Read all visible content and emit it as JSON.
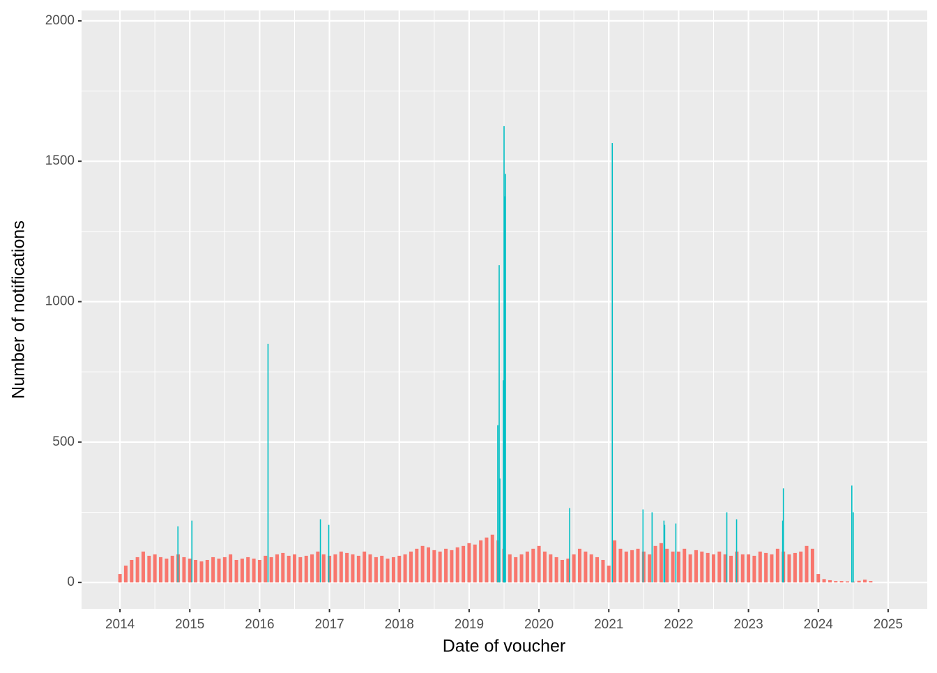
{
  "chart_data": {
    "type": "bar",
    "xlabel": "Date of voucher",
    "ylabel": "Number of notifications",
    "xlim": [
      2013.45,
      2025.56
    ],
    "xticks": [
      2014,
      2015,
      2016,
      2017,
      2018,
      2019,
      2020,
      2021,
      2022,
      2023,
      2024,
      2025
    ],
    "ylim": [
      -94,
      2037
    ],
    "yticks": [
      0,
      500,
      1000,
      1500,
      2000
    ],
    "grid": true,
    "series": [
      {
        "color": "#f8766d",
        "x": [
          2014,
          2014.083,
          2014.167,
          2014.25,
          2014.333,
          2014.417,
          2014.5,
          2014.583,
          2014.667,
          2014.75,
          2014.833,
          2014.917,
          2015,
          2015.083,
          2015.167,
          2015.25,
          2015.333,
          2015.417,
          2015.5,
          2015.583,
          2015.667,
          2015.75,
          2015.833,
          2015.917,
          2016,
          2016.083,
          2016.167,
          2016.25,
          2016.333,
          2016.417,
          2016.5,
          2016.583,
          2016.667,
          2016.75,
          2016.833,
          2016.917,
          2017,
          2017.083,
          2017.167,
          2017.25,
          2017.333,
          2017.417,
          2017.5,
          2017.583,
          2017.667,
          2017.75,
          2017.833,
          2017.917,
          2018,
          2018.083,
          2018.167,
          2018.25,
          2018.333,
          2018.417,
          2018.5,
          2018.583,
          2018.667,
          2018.75,
          2018.833,
          2018.917,
          2019,
          2019.083,
          2019.167,
          2019.25,
          2019.333,
          2019.417,
          2019.5,
          2019.583,
          2019.667,
          2019.75,
          2019.833,
          2019.917,
          2020,
          2020.083,
          2020.167,
          2020.25,
          2020.333,
          2020.417,
          2020.5,
          2020.583,
          2020.667,
          2020.75,
          2020.833,
          2020.917,
          2021,
          2021.083,
          2021.167,
          2021.25,
          2021.333,
          2021.417,
          2021.5,
          2021.583,
          2021.667,
          2021.75,
          2021.833,
          2021.917,
          2022,
          2022.083,
          2022.167,
          2022.25,
          2022.333,
          2022.417,
          2022.5,
          2022.583,
          2022.667,
          2022.75,
          2022.833,
          2022.917,
          2023,
          2023.083,
          2023.167,
          2023.25,
          2023.333,
          2023.417,
          2023.5,
          2023.583,
          2023.667,
          2023.75,
          2023.833,
          2023.917,
          2024,
          2024.083,
          2024.167,
          2024.25,
          2024.333,
          2024.417,
          2024.5,
          2024.583,
          2024.667,
          2024.75
        ],
        "values": [
          30,
          60,
          80,
          90,
          110,
          95,
          100,
          90,
          85,
          95,
          100,
          90,
          85,
          80,
          75,
          80,
          90,
          85,
          90,
          100,
          80,
          85,
          90,
          85,
          80,
          95,
          90,
          100,
          105,
          95,
          100,
          90,
          95,
          100,
          110,
          100,
          95,
          100,
          110,
          105,
          100,
          95,
          110,
          100,
          90,
          95,
          85,
          90,
          95,
          100,
          110,
          120,
          130,
          125,
          115,
          110,
          120,
          115,
          125,
          130,
          140,
          135,
          150,
          160,
          170,
          150,
          120,
          100,
          90,
          100,
          110,
          120,
          130,
          110,
          100,
          90,
          80,
          85,
          100,
          120,
          110,
          100,
          90,
          80,
          60,
          150,
          120,
          110,
          115,
          120,
          110,
          100,
          130,
          140,
          120,
          110,
          110,
          120,
          100,
          115,
          110,
          105,
          100,
          110,
          100,
          95,
          110,
          100,
          100,
          95,
          110,
          105,
          100,
          120,
          110,
          100,
          105,
          110,
          130,
          120,
          30,
          12,
          8,
          5,
          5,
          4,
          3,
          6,
          10,
          5
        ]
      },
      {
        "color": "#00bfc4",
        "x": [
          2014.83,
          2015.03,
          2016.12,
          2016.87,
          2016.99,
          2019.41,
          2019.43,
          2019.44,
          2019.49,
          2019.5,
          2019.505,
          2019.51,
          2019.52,
          2020.44,
          2021.05,
          2021.49,
          2021.62,
          2021.79,
          2021.8,
          2021.96,
          2022.69,
          2022.83,
          2023.49,
          2023.5,
          2024.48,
          2024.5
        ],
        "values": [
          200,
          220,
          850,
          225,
          205,
          560,
          1130,
          370,
          720,
          1625,
          575,
          1375,
          1455,
          265,
          1565,
          260,
          250,
          220,
          205,
          210,
          250,
          225,
          220,
          335,
          345,
          250
        ]
      }
    ]
  }
}
